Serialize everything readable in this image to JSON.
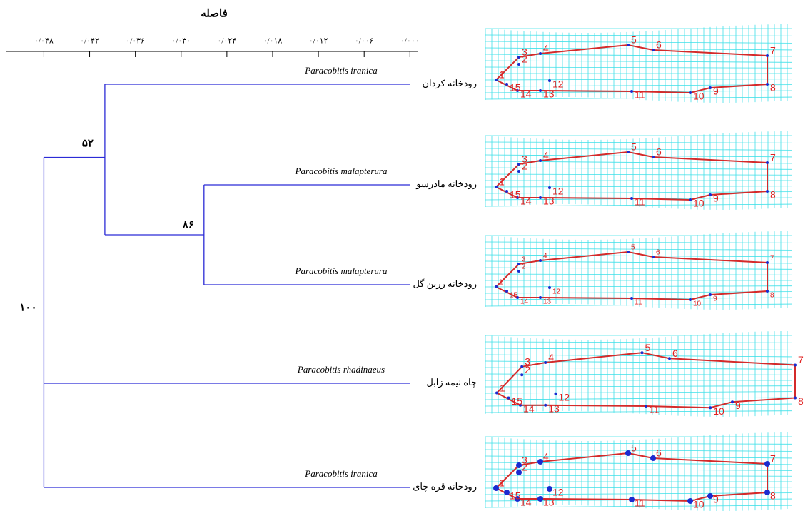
{
  "chart_data": {
    "type": "dendrogram",
    "x_label": "فاصله",
    "xlim": [
      0.053,
      -0.001
    ],
    "xticks": [
      {
        "value": 0.048,
        "label": "۰/۰۴۸"
      },
      {
        "value": 0.042,
        "label": "۰/۰۴۲"
      },
      {
        "value": 0.036,
        "label": "۰/۰۳۶"
      },
      {
        "value": 0.03,
        "label": "۰/۰۳۰"
      },
      {
        "value": 0.024,
        "label": "۰/۰۲۴"
      },
      {
        "value": 0.018,
        "label": "۰/۰۱۸"
      },
      {
        "value": 0.012,
        "label": "۰/۰۱۲"
      },
      {
        "value": 0.006,
        "label": "۰/۰۰۶"
      },
      {
        "value": 0,
        "label": "۰/۰۰۰"
      }
    ],
    "leaves": [
      {
        "site": "رودخانه کردان",
        "species": "Paracobitis iranica",
        "height": 0
      },
      {
        "site": "رودخانه مادرسو",
        "species": "Paracobitis malapterura",
        "height": 0
      },
      {
        "site": "رودخانه زرین گل",
        "species": "Paracobitis malapterura",
        "height": 0
      },
      {
        "site": "چاه نیمه زابل",
        "species": "Paracobitis rhadinaeus",
        "height": 0
      },
      {
        "site": "رودخانه قره چای",
        "species": "Paracobitis iranica",
        "height": 0
      }
    ],
    "nodes": [
      {
        "height": 0.048,
        "support": "۱۰۰"
      },
      {
        "height": 0.04,
        "support": "۵۲"
      },
      {
        "height": 0.027,
        "support": "۸۶"
      }
    ],
    "color": "#2b2bd6"
  },
  "panels": [
    {
      "landmarks": [
        "1",
        "2",
        "3",
        "4",
        "5",
        "6",
        "7",
        "8",
        "9",
        "10",
        "11",
        "12",
        "13",
        "14",
        "15"
      ]
    },
    {
      "landmarks": [
        "1",
        "2",
        "3",
        "4",
        "5",
        "6",
        "7",
        "8",
        "9",
        "10",
        "11",
        "12",
        "13",
        "14",
        "15"
      ]
    },
    {
      "landmarks": [
        "1",
        "2",
        "3",
        "4",
        "5",
        "6",
        "7",
        "8",
        "9",
        "10",
        "11",
        "12",
        "13",
        "14",
        "15"
      ]
    },
    {
      "landmarks": [
        "1",
        "2",
        "3",
        "4",
        "5",
        "6",
        "7",
        "8",
        "9",
        "10",
        "11",
        "12",
        "13",
        "14",
        "15"
      ]
    },
    {
      "landmarks": [
        "1",
        "2",
        "3",
        "4",
        "5",
        "6",
        "7",
        "8",
        "9",
        "10",
        "11",
        "12",
        "13",
        "14",
        "15"
      ]
    }
  ]
}
